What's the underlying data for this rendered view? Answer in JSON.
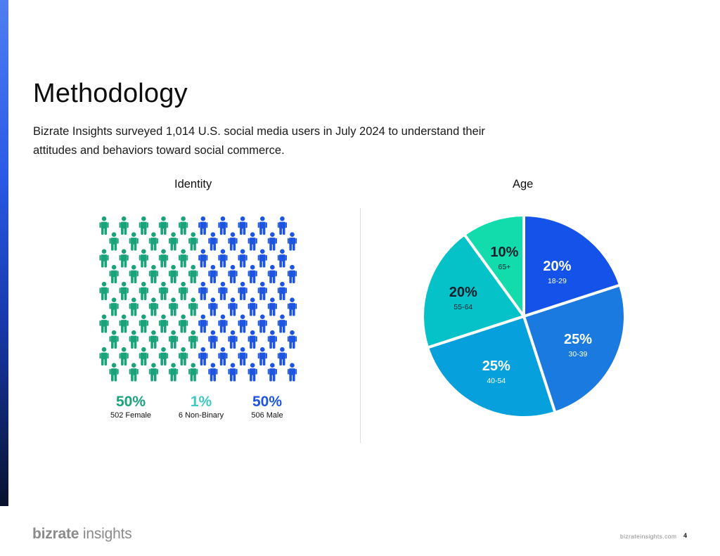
{
  "page": {
    "title": "Methodology",
    "intro": "Bizrate Insights surveyed 1,014 U.S. social media users in July 2024 to understand their attitudes and behaviors toward social commerce.",
    "brand_bold": "bizrate",
    "brand_light": " insights",
    "footer_url": "bizrateinsights.com",
    "page_number": "4"
  },
  "colors": {
    "female": "#1aa37a",
    "non_binary": "#3ec8c0",
    "male": "#1e55e0",
    "bar_top": "#4f7ef2",
    "bar_bottom": "#08122e"
  },
  "chart_data": [
    {
      "type": "pictograph",
      "title": "Identity",
      "total_icons": 100,
      "categories": [
        {
          "pct_label": "50%",
          "label": "502 Female",
          "value": 502,
          "color": "#1aa37a"
        },
        {
          "pct_label": "1%",
          "label": "6 Non-Binary",
          "value": 6,
          "color": "#3ec8c0"
        },
        {
          "pct_label": "50%",
          "label": "506 Male",
          "value": 506,
          "color": "#1e55e0"
        }
      ]
    },
    {
      "type": "pie",
      "title": "Age",
      "slices": [
        {
          "pct_label": "20%",
          "label": "18-29",
          "value": 20,
          "color": "#1452ea"
        },
        {
          "pct_label": "25%",
          "label": "30-39",
          "value": 25,
          "color": "#1a7ae0"
        },
        {
          "pct_label": "25%",
          "label": "40-54",
          "value": 25,
          "color": "#06a0dc"
        },
        {
          "pct_label": "20%",
          "label": "55-64",
          "value": 20,
          "color": "#05c1c8"
        },
        {
          "pct_label": "10%",
          "label": "65+",
          "value": 10,
          "color": "#12dcac"
        }
      ]
    }
  ]
}
